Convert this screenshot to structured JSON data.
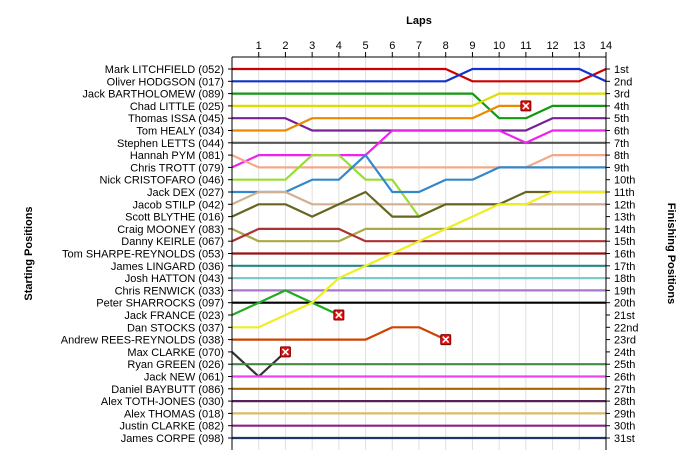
{
  "chart_data": {
    "type": "line",
    "title": "",
    "top_axis_label": "Laps",
    "left_axis_label": "Starting Positions",
    "right_axis_label": "Finishing Positions",
    "x": [
      0,
      1,
      2,
      3,
      4,
      5,
      6,
      7,
      8,
      9,
      10,
      11,
      12,
      13,
      14
    ],
    "x_tick_labels": [
      "1",
      "2",
      "3",
      "4",
      "5",
      "6",
      "7",
      "8",
      "9",
      "10",
      "11",
      "12",
      "13",
      "14"
    ],
    "y_range": [
      1,
      31
    ],
    "y_inverted": true,
    "finishing_labels": [
      "1st",
      "2nd",
      "3rd",
      "4th",
      "5th",
      "6th",
      "7th",
      "8th",
      "9th",
      "10th",
      "11th",
      "12th",
      "13th",
      "14th",
      "15th",
      "16th",
      "17th",
      "18th",
      "19th",
      "20th",
      "21st",
      "22nd",
      "23rd",
      "24th",
      "25th",
      "26th",
      "27th",
      "28th",
      "29th",
      "30th",
      "31st"
    ],
    "series": [
      {
        "name": "Mark LITCHFIELD (052)",
        "color": "#cc0000",
        "positions": [
          1,
          1,
          1,
          1,
          1,
          1,
          1,
          1,
          1,
          2,
          2,
          2,
          2,
          2,
          1
        ]
      },
      {
        "name": "Oliver HODGSON (017)",
        "color": "#1133cc",
        "positions": [
          2,
          2,
          2,
          2,
          2,
          2,
          2,
          2,
          2,
          1,
          1,
          1,
          1,
          1,
          2
        ]
      },
      {
        "name": "Jack BARTHOLOMEW (089)",
        "color": "#119911",
        "positions": [
          3,
          3,
          3,
          3,
          3,
          3,
          3,
          3,
          3,
          3,
          5,
          5,
          4,
          4,
          4
        ]
      },
      {
        "name": "Chad LITTLE (025)",
        "color": "#dddd00",
        "positions": [
          4,
          4,
          4,
          4,
          4,
          4,
          4,
          4,
          4,
          4,
          3,
          3,
          3,
          3,
          3
        ]
      },
      {
        "name": "Thomas ISSA (045)",
        "color": "#772299",
        "positions": [
          5,
          5,
          5,
          6,
          6,
          6,
          6,
          6,
          6,
          6,
          6,
          6,
          5,
          5,
          5
        ]
      },
      {
        "name": "Tom HEALY (034)",
        "color": "#ee8800",
        "positions": [
          6,
          6,
          6,
          5,
          5,
          5,
          5,
          5,
          5,
          5,
          4,
          4,
          null,
          null,
          null
        ],
        "dnf": {
          "x": 11,
          "position": 4
        }
      },
      {
        "name": "Stephen LETTS (044)",
        "color": "#555555",
        "positions": [
          7,
          7,
          7,
          7,
          7,
          7,
          7,
          7,
          7,
          7,
          7,
          7,
          7,
          7,
          7
        ]
      },
      {
        "name": "Chris TROTT (079)",
        "color": "#ee22ee",
        "positions": [
          9,
          8,
          8,
          8,
          8,
          8,
          6,
          6,
          6,
          6,
          6,
          7,
          6,
          6,
          6
        ]
      },
      {
        "name": "Hannah PYM (081)",
        "color": "#f5a888",
        "positions": [
          8,
          9,
          9,
          9,
          9,
          9,
          9,
          9,
          9,
          9,
          9,
          9,
          8,
          8,
          8
        ]
      },
      {
        "name": "Nick CRISTOFARO (046)",
        "color": "#99dd33",
        "positions": [
          10,
          10,
          10,
          8,
          8,
          10,
          10,
          13,
          12,
          12,
          12,
          12,
          12,
          12,
          12
        ]
      },
      {
        "name": "Jack DEX (027)",
        "color": "#3388cc",
        "positions": [
          11,
          11,
          11,
          10,
          10,
          8,
          11,
          11,
          10,
          10,
          9,
          9,
          9,
          9,
          9
        ]
      },
      {
        "name": "Jacob STILP (042)",
        "color": "#d0b090",
        "positions": [
          12,
          11,
          11,
          12,
          12,
          12,
          12,
          12,
          12,
          12,
          12,
          12,
          12,
          12,
          12
        ]
      },
      {
        "name": "Scott BLYTHE (016)",
        "color": "#666622",
        "positions": [
          13,
          12,
          12,
          13,
          12,
          11,
          13,
          13,
          12,
          12,
          12,
          11,
          11,
          11,
          11
        ]
      },
      {
        "name": "Craig MOONEY (083)",
        "color": "#aaaa44",
        "positions": [
          14,
          15,
          15,
          15,
          15,
          14,
          14,
          14,
          14,
          14,
          14,
          14,
          14,
          14,
          14
        ]
      },
      {
        "name": "Danny KEIRLE (067)",
        "color": "#aa3333",
        "positions": [
          15,
          14,
          14,
          14,
          14,
          15,
          15,
          15,
          15,
          15,
          15,
          15,
          15,
          15,
          15
        ]
      },
      {
        "name": "Tom SHARPE-REYNOLDS (053)",
        "color": "#991111",
        "positions": [
          16,
          16,
          16,
          16,
          16,
          16,
          16,
          16,
          16,
          16,
          16,
          16,
          16,
          16,
          16
        ]
      },
      {
        "name": "James LINGARD (036)",
        "color": "#228888",
        "positions": [
          17,
          17,
          17,
          17,
          17,
          17,
          17,
          17,
          17,
          17,
          17,
          17,
          17,
          17,
          17
        ]
      },
      {
        "name": "Josh HATTON (043)",
        "color": "#77cccc",
        "positions": [
          18,
          18,
          18,
          18,
          18,
          18,
          18,
          18,
          18,
          18,
          18,
          18,
          18,
          18,
          18
        ]
      },
      {
        "name": "Chris RENWICK (033)",
        "color": "#aa77cc",
        "positions": [
          19,
          19,
          19,
          19,
          19,
          19,
          19,
          19,
          19,
          19,
          19,
          19,
          19,
          19,
          19
        ]
      },
      {
        "name": "Peter SHARROCKS (097)",
        "color": "#000000",
        "positions": [
          20,
          20,
          20,
          20,
          20,
          20,
          20,
          20,
          20,
          20,
          20,
          20,
          20,
          20,
          20
        ]
      },
      {
        "name": "Jack FRANCE (023)",
        "color": "#22aa22",
        "positions": [
          21,
          20,
          19,
          20,
          21,
          null,
          null,
          null,
          null,
          null,
          null,
          null,
          null,
          null,
          null
        ],
        "dnf": {
          "x": 4,
          "position": 21
        }
      },
      {
        "name": "Dan STOCKS (037)",
        "color": "#eeee22",
        "positions": [
          22,
          22,
          21,
          20,
          18,
          17,
          16,
          15,
          14,
          13,
          12,
          12,
          11,
          11,
          11
        ]
      },
      {
        "name": "Andrew REES-REYNOLDS (038)",
        "color": "#cc4400",
        "positions": [
          23,
          23,
          23,
          23,
          23,
          23,
          22,
          22,
          23,
          null,
          null,
          null,
          null,
          null,
          null
        ],
        "dnf": {
          "x": 8,
          "position": 23
        }
      },
      {
        "name": "Max CLARKE (070)",
        "color": "#333333",
        "positions": [
          24,
          26,
          24,
          null,
          null,
          null,
          null,
          null,
          null,
          null,
          null,
          null,
          null,
          null,
          null
        ],
        "dnf": {
          "x": 2,
          "position": 24
        }
      },
      {
        "name": "Ryan GREEN (026)",
        "color": "#448844",
        "positions": [
          25,
          25,
          25,
          25,
          25,
          25,
          25,
          25,
          25,
          25,
          25,
          25,
          25,
          25,
          25
        ]
      },
      {
        "name": "Jack NEW (061)",
        "color": "#ee44ee",
        "positions": [
          26,
          26,
          26,
          26,
          26,
          26,
          26,
          26,
          26,
          26,
          26,
          26,
          26,
          26,
          26
        ]
      },
      {
        "name": "Daniel BAYBUTT (086)",
        "color": "#aa6600",
        "positions": [
          27,
          27,
          27,
          27,
          27,
          27,
          27,
          27,
          27,
          27,
          27,
          27,
          27,
          27,
          27
        ]
      },
      {
        "name": "Alex TOTH-JONES (030)",
        "color": "#552255",
        "positions": [
          28,
          28,
          28,
          28,
          28,
          28,
          28,
          28,
          28,
          28,
          28,
          28,
          28,
          28,
          28
        ]
      },
      {
        "name": "Alex THOMAS (018)",
        "color": "#ddbb66",
        "positions": [
          29,
          29,
          29,
          29,
          29,
          29,
          29,
          29,
          29,
          29,
          29,
          29,
          29,
          29,
          29
        ]
      },
      {
        "name": "Justin CLARKE (082)",
        "color": "#882288",
        "positions": [
          30,
          30,
          30,
          30,
          30,
          30,
          30,
          30,
          30,
          30,
          30,
          30,
          30,
          30,
          30
        ]
      },
      {
        "name": "James CORPE (098)",
        "color": "#223366",
        "positions": [
          31,
          31,
          31,
          31,
          31,
          31,
          31,
          31,
          31,
          31,
          31,
          31,
          31,
          31,
          31
        ]
      }
    ]
  }
}
